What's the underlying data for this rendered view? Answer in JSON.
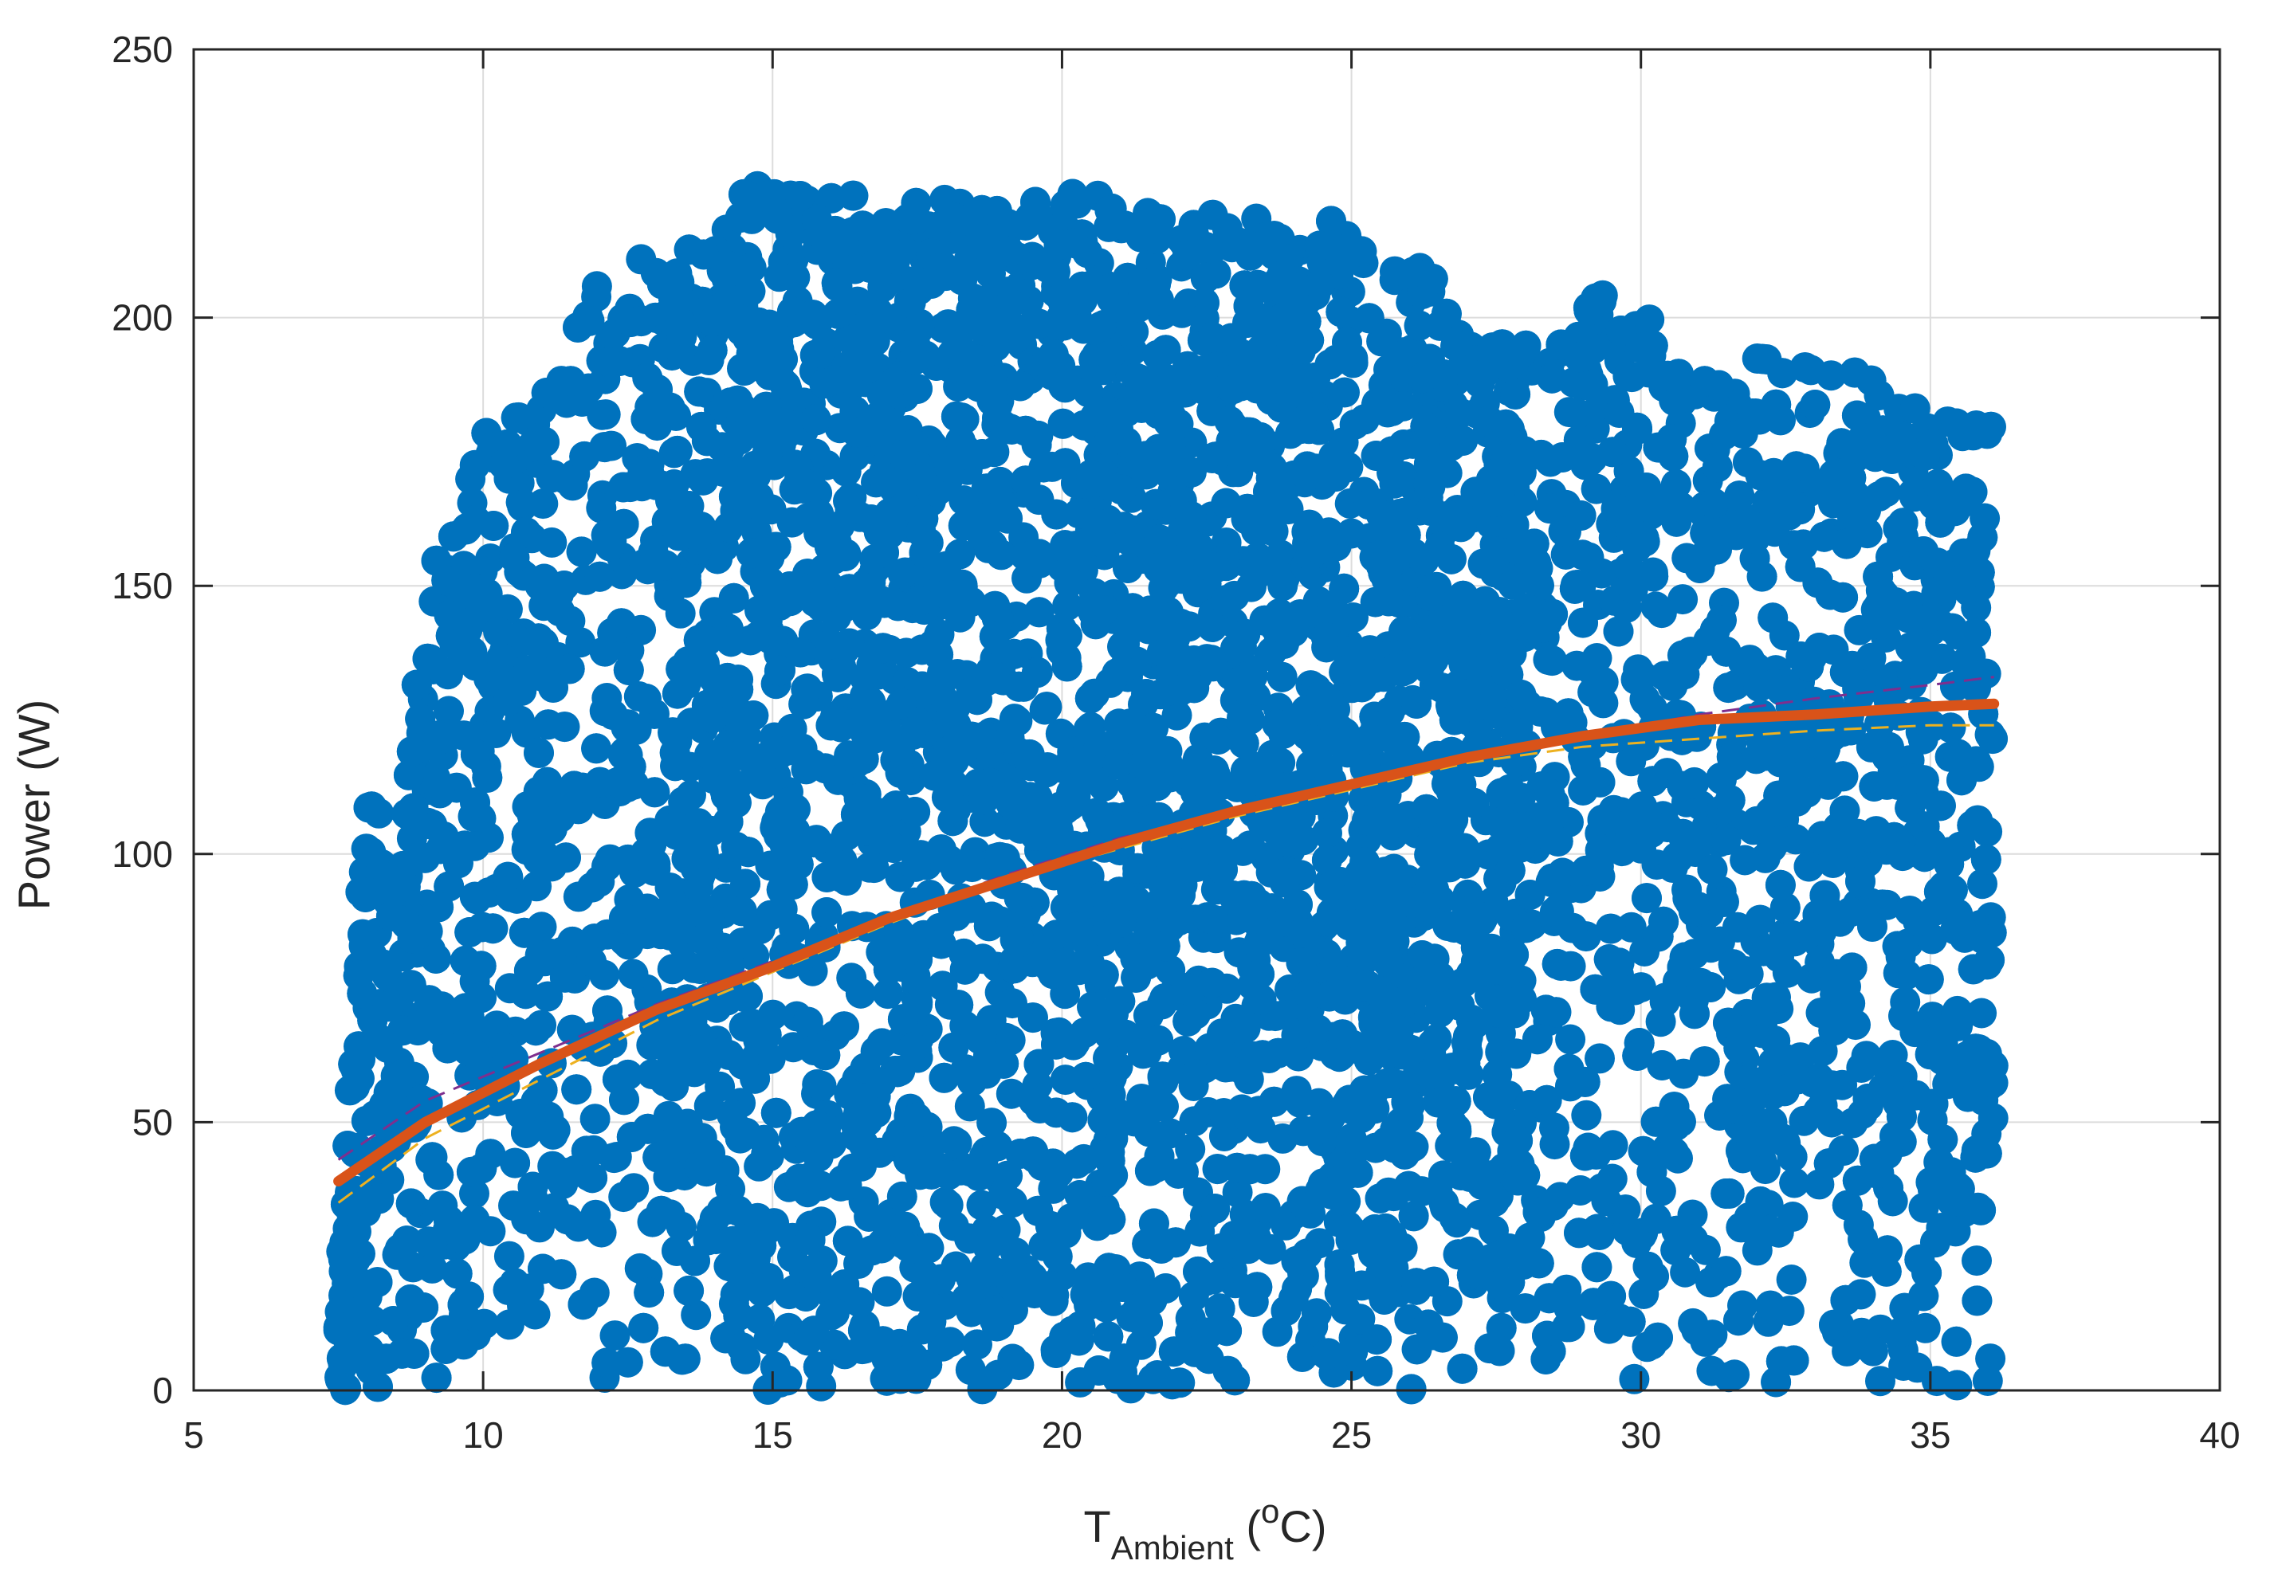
{
  "chart_data": {
    "type": "scatter",
    "title": "",
    "xlabel": {
      "main": "T",
      "subscript": "Ambient",
      "open": " (",
      "superscript": "o",
      "unit": "C)"
    },
    "ylabel": "Power (W)",
    "xlim": [
      5,
      40
    ],
    "ylim": [
      0,
      250
    ],
    "xticks": [
      5,
      10,
      15,
      20,
      25,
      30,
      35,
      40
    ],
    "yticks": [
      0,
      50,
      100,
      150,
      200,
      250
    ],
    "xtick_labels": [
      "5",
      "10",
      "15",
      "20",
      "25",
      "30",
      "35",
      "40"
    ],
    "ytick_labels": [
      "0",
      "50",
      "100",
      "150",
      "200",
      "250"
    ],
    "grid": true,
    "legend": "none",
    "colors": {
      "points": "#0072BD",
      "fit": "#D95319",
      "upper_bound": "#7E2F8E",
      "lower_bound": "#EDB120",
      "grid": "#dcdcdc",
      "axis": "#262626"
    },
    "scatter_envelope": {
      "description_free": true,
      "x_range": [
        7.5,
        36.1
      ],
      "upper_envelope": [
        [
          7.5,
          18
        ],
        [
          8.0,
          117
        ],
        [
          8.5,
          95
        ],
        [
          9.0,
          150
        ],
        [
          9.5,
          165
        ],
        [
          10.0,
          178
        ],
        [
          10.5,
          183
        ],
        [
          11.0,
          185
        ],
        [
          11.5,
          195
        ],
        [
          12.0,
          207
        ],
        [
          12.5,
          210
        ],
        [
          13.0,
          212
        ],
        [
          13.5,
          212
        ],
        [
          14.0,
          218
        ],
        [
          14.5,
          225
        ],
        [
          15.0,
          224
        ],
        [
          16.0,
          225
        ],
        [
          17.0,
          222
        ],
        [
          18.0,
          222
        ],
        [
          19.0,
          222
        ],
        [
          19.5,
          225
        ],
        [
          20.0,
          224
        ],
        [
          21.0,
          222
        ],
        [
          22.0,
          218
        ],
        [
          23.0,
          223
        ],
        [
          24.0,
          218
        ],
        [
          25.0,
          218
        ],
        [
          26.0,
          210
        ],
        [
          26.5,
          210
        ],
        [
          27.0,
          196
        ],
        [
          28.0,
          196
        ],
        [
          28.5,
          195
        ],
        [
          29.0,
          210
        ],
        [
          29.5,
          202
        ],
        [
          30.0,
          204
        ],
        [
          30.5,
          190
        ],
        [
          31.0,
          190
        ],
        [
          32.0,
          195
        ],
        [
          33.0,
          190
        ],
        [
          34.0,
          190
        ],
        [
          35.0,
          188
        ],
        [
          35.5,
          182
        ],
        [
          36.1,
          180
        ]
      ]
    },
    "series": [
      {
        "kind": "fit",
        "x": [
          7.5,
          9,
          11,
          13,
          15,
          17,
          19,
          21,
          23,
          25,
          27,
          29,
          31,
          33,
          35,
          36.1
        ],
        "y": [
          39,
          50,
          61,
          71,
          79,
          88,
          95,
          102,
          108,
          113,
          118,
          122,
          125,
          126,
          127.5,
          128
        ]
      },
      {
        "kind": "upper-bound",
        "x": [
          7.5,
          9,
          11,
          13,
          15,
          17,
          19,
          21,
          23,
          25,
          27,
          29,
          31,
          33,
          35,
          36.1
        ],
        "y": [
          43,
          54,
          63,
          72,
          80,
          88,
          96,
          103,
          108,
          113,
          118,
          122,
          126,
          129,
          131.5,
          133
        ]
      },
      {
        "kind": "lower-bound",
        "x": [
          7.5,
          9,
          11,
          13,
          15,
          17,
          19,
          21,
          23,
          25,
          27,
          29,
          31,
          33,
          35,
          36.1
        ],
        "y": [
          35,
          47,
          58,
          69,
          78,
          87,
          95,
          101,
          107,
          112,
          117,
          120,
          121.5,
          123,
          124,
          124
        ]
      }
    ]
  }
}
